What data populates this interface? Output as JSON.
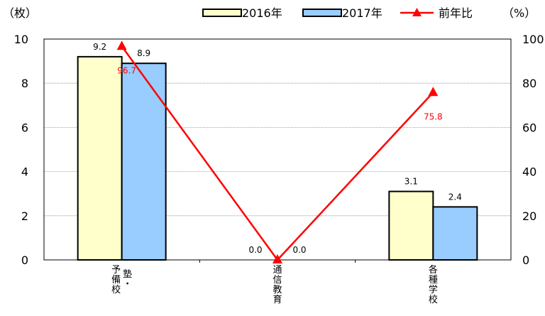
{
  "chart_data": {
    "type": "bar",
    "categories": [
      {
        "label": "予備校・塾",
        "lines": [
          [
            "予",
            "備",
            "校"
          ],
          [
            "塾",
            "・"
          ]
        ]
      },
      {
        "label": "通信教育",
        "lines": [
          [
            "通",
            "信",
            "教",
            "育"
          ]
        ]
      },
      {
        "label": "各種学校",
        "lines": [
          [
            "各",
            "種",
            "学",
            "校"
          ]
        ]
      }
    ],
    "series": [
      {
        "name": "2016年",
        "values": [
          9.2,
          0.0,
          3.1
        ],
        "labels": [
          "9.2",
          "0.0",
          "3.1"
        ],
        "color": "#ffffcc",
        "axis": "left"
      },
      {
        "name": "2017年",
        "values": [
          8.9,
          0.0,
          2.4
        ],
        "labels": [
          "8.9",
          "0.0",
          "2.4"
        ],
        "color": "#99ccff",
        "axis": "left"
      },
      {
        "name": "前年比",
        "type": "line",
        "values": [
          96.7,
          0.0,
          75.8
        ],
        "labels": [
          "96.7",
          "",
          "75.8"
        ],
        "color": "#ff0000",
        "axis": "right"
      }
    ],
    "y_left": {
      "unit": "（枚）",
      "min": 0,
      "max": 10,
      "ticks": [
        0,
        2,
        4,
        6,
        8,
        10
      ]
    },
    "y_right": {
      "unit": "（%）",
      "min": 0,
      "max": 100,
      "ticks": [
        0,
        20,
        40,
        60,
        80,
        100
      ]
    },
    "grid": true,
    "legend_position": "top"
  }
}
